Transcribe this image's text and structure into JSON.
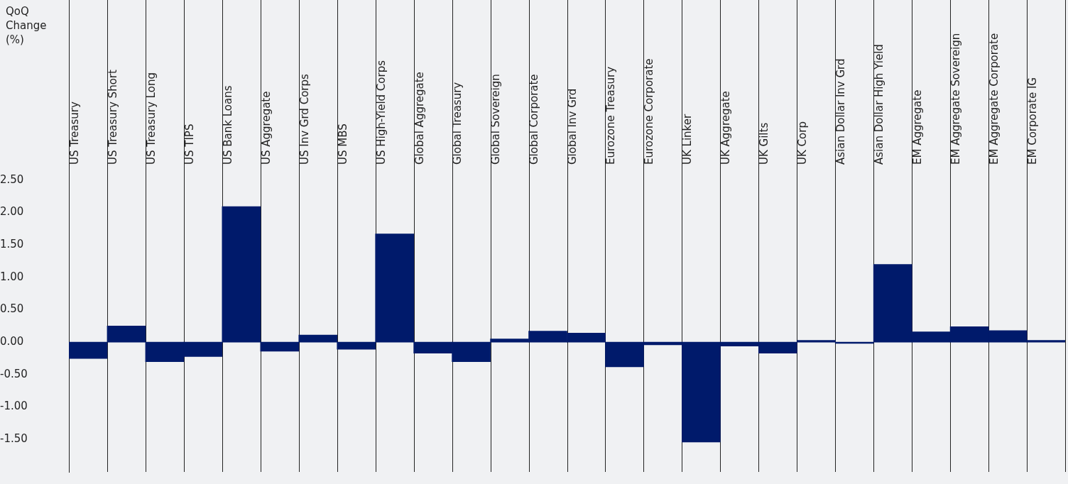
{
  "chart_data": {
    "type": "bar",
    "ylabel": "QoQ Change (%)",
    "categories": [
      "US Treasury",
      "US Treasury Short",
      "US Treasury Long",
      "US TIPS",
      "US Bank Loans",
      "US Aggregate",
      "US Inv Grd Corps",
      "US MBS",
      "US High-Yield Corps",
      "Global Aggregate",
      "Global Treasury",
      "Global Sovereign",
      "Global Corporate",
      "Global Inv Grd",
      "Eurozone Treasury",
      "Eurozone Corporate",
      "UK Linker",
      "UK Aggregate",
      "UK Gilts",
      "UK Corp",
      "Asian Dollar Inv Grd",
      "Asian Dollar High Yield",
      "EM Aggregate",
      "EM Aggregate Sovereign",
      "EM Aggregate Corporate",
      "EM Corporate IG"
    ],
    "values": [
      -0.25,
      0.25,
      -0.3,
      -0.22,
      2.09,
      -0.14,
      0.11,
      -0.11,
      1.67,
      -0.17,
      -0.3,
      0.05,
      0.17,
      0.14,
      -0.38,
      -0.04,
      -1.54,
      -0.06,
      -0.17,
      0.03,
      -0.02,
      1.2,
      0.16,
      0.24,
      0.18,
      0.03
    ],
    "color": "#001a6b",
    "ylim": [
      -2.0,
      2.65
    ],
    "yticks": [
      {
        "value": -1.5,
        "label": "-1.50"
      },
      {
        "value": -1.0,
        "label": "-1.00"
      },
      {
        "value": -0.5,
        "label": "-0.50"
      },
      {
        "value": 0,
        "label": "0.00"
      },
      {
        "value": 0.5,
        "label": "0.50"
      },
      {
        "value": 1.0,
        "label": "1.00"
      },
      {
        "value": 1.5,
        "label": "1.50"
      },
      {
        "value": 2.0,
        "label": "2.00"
      },
      {
        "value": 2.5,
        "label": "2.50"
      }
    ],
    "grid": "x",
    "legend": false
  }
}
